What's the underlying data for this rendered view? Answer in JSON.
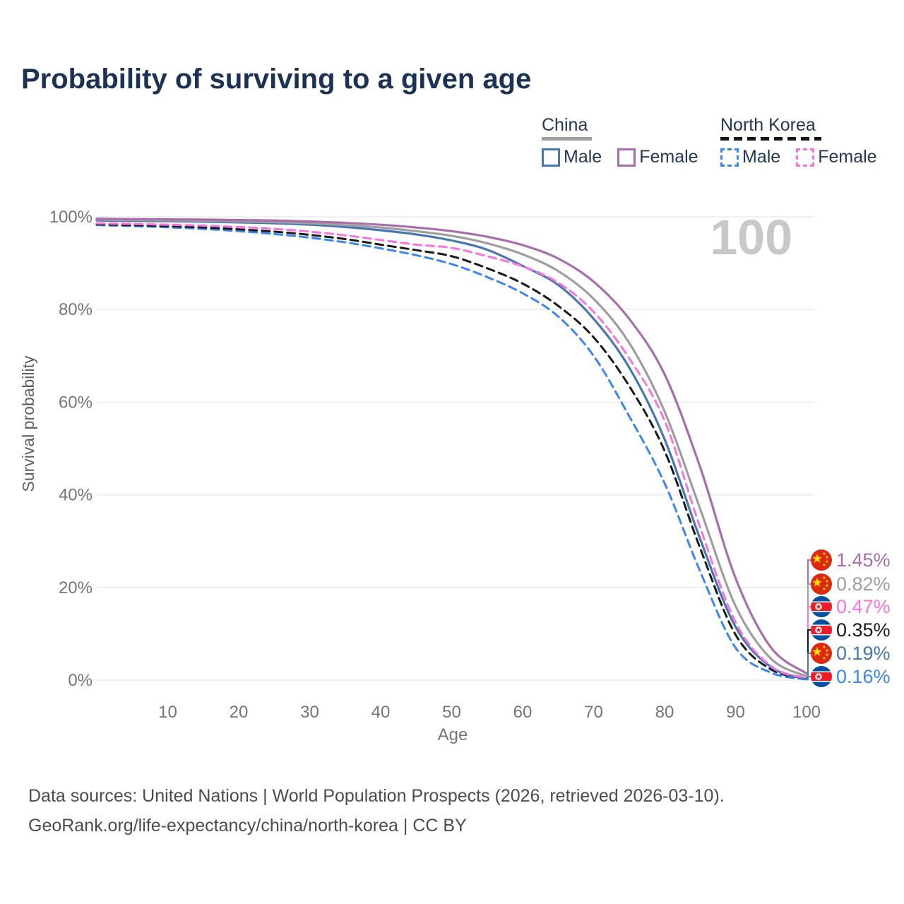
{
  "title": "Probability of surviving to a given age",
  "legend": {
    "groups": [
      {
        "label": "China",
        "line_style": "solid",
        "underline_color": "#9e9e9e",
        "items": [
          {
            "label": "Male",
            "color": "#4677b2"
          },
          {
            "label": "Female",
            "color": "#a96cac"
          }
        ]
      },
      {
        "label": "North Korea",
        "line_style": "dashed",
        "underline_color": "#141414",
        "items": [
          {
            "label": "Male",
            "color": "#3c86f0"
          },
          {
            "label": "Female",
            "color": "#f973dd"
          }
        ]
      }
    ]
  },
  "chart_data": {
    "type": "line",
    "title": "Probability of surviving to a given age",
    "xlabel": "Age",
    "ylabel": "Survival probability",
    "xlim": [
      0,
      100
    ],
    "ylim": [
      0,
      100
    ],
    "grid": "horizontal-only",
    "watermark": "100",
    "x_ticks": [
      10,
      20,
      30,
      40,
      50,
      60,
      70,
      80,
      90,
      100
    ],
    "y_ticks": [
      {
        "value": 0,
        "label": "0%"
      },
      {
        "value": 20,
        "label": "20%"
      },
      {
        "value": 40,
        "label": "40%"
      },
      {
        "value": 60,
        "label": "60%"
      },
      {
        "value": 80,
        "label": "80%"
      },
      {
        "value": 100,
        "label": "100%"
      }
    ],
    "x": [
      0,
      5,
      10,
      15,
      20,
      25,
      30,
      35,
      40,
      45,
      50,
      55,
      60,
      65,
      70,
      75,
      80,
      85,
      90,
      95,
      100
    ],
    "series": [
      {
        "name": "China Female",
        "color": "#a96cac",
        "dash": false,
        "flag": "china",
        "end_label": "1.45%",
        "values": [
          99.6,
          99.5,
          99.45,
          99.4,
          99.3,
          99.2,
          99.0,
          98.7,
          98.3,
          97.7,
          96.9,
          95.7,
          93.9,
          91.0,
          86.0,
          78.0,
          66.0,
          46.0,
          22.0,
          7.0,
          1.45
        ]
      },
      {
        "name": "China Both sexes",
        "color": "#9e9e9e",
        "dash": false,
        "flag": "china",
        "end_label": "0.82%",
        "values": [
          99.4,
          99.3,
          99.25,
          99.15,
          99.0,
          98.85,
          98.6,
          98.2,
          97.7,
          96.9,
          95.9,
          94.3,
          91.9,
          88.3,
          82.3,
          72.8,
          58.0,
          37.0,
          16.0,
          4.6,
          0.82
        ]
      },
      {
        "name": "North Korea Female",
        "color": "#f973dd",
        "dash": true,
        "flag": "north-korea",
        "end_label": "0.47%",
        "values": [
          98.6,
          98.45,
          98.3,
          98.1,
          97.8,
          97.4,
          96.8,
          96.0,
          95.0,
          94.0,
          93.3,
          91.5,
          89.3,
          85.8,
          79.5,
          69.5,
          56.0,
          33.0,
          12.5,
          3.0,
          0.47
        ]
      },
      {
        "name": "North Korea Both sexes",
        "color": "#191919",
        "dash": true,
        "flag": "north-korea",
        "end_label": "0.35%",
        "values": [
          98.4,
          98.2,
          98.0,
          97.7,
          97.3,
          96.8,
          96.1,
          95.2,
          94.0,
          92.8,
          91.5,
          88.9,
          85.6,
          80.8,
          74.0,
          63.5,
          49.5,
          28.5,
          9.8,
          2.3,
          0.35
        ]
      },
      {
        "name": "China Male",
        "color": "#4677b2",
        "dash": false,
        "flag": "china",
        "end_label": "0.19%",
        "values": [
          99.2,
          99.1,
          99.05,
          98.95,
          98.8,
          98.6,
          98.3,
          97.8,
          97.1,
          96.2,
          94.9,
          92.9,
          89.4,
          85.3,
          78.0,
          67.5,
          52.0,
          30.5,
          11.5,
          2.8,
          0.19
        ]
      },
      {
        "name": "North Korea Male",
        "color": "#3c86f0",
        "dash": true,
        "flag": "north-korea",
        "end_label": "0.16%",
        "values": [
          98.2,
          98.0,
          97.75,
          97.4,
          96.9,
          96.3,
          95.5,
          94.5,
          93.2,
          91.7,
          89.8,
          87.0,
          83.5,
          78.5,
          70.0,
          57.0,
          42.5,
          23.5,
          7.0,
          1.6,
          0.16
        ]
      }
    ]
  },
  "footer": {
    "line1": "Data sources: United Nations | World Population Prospects (2026, retrieved 2026-03-10).",
    "line2": "GeoRank.org/life-expectancy/china/north-korea | CC BY"
  }
}
